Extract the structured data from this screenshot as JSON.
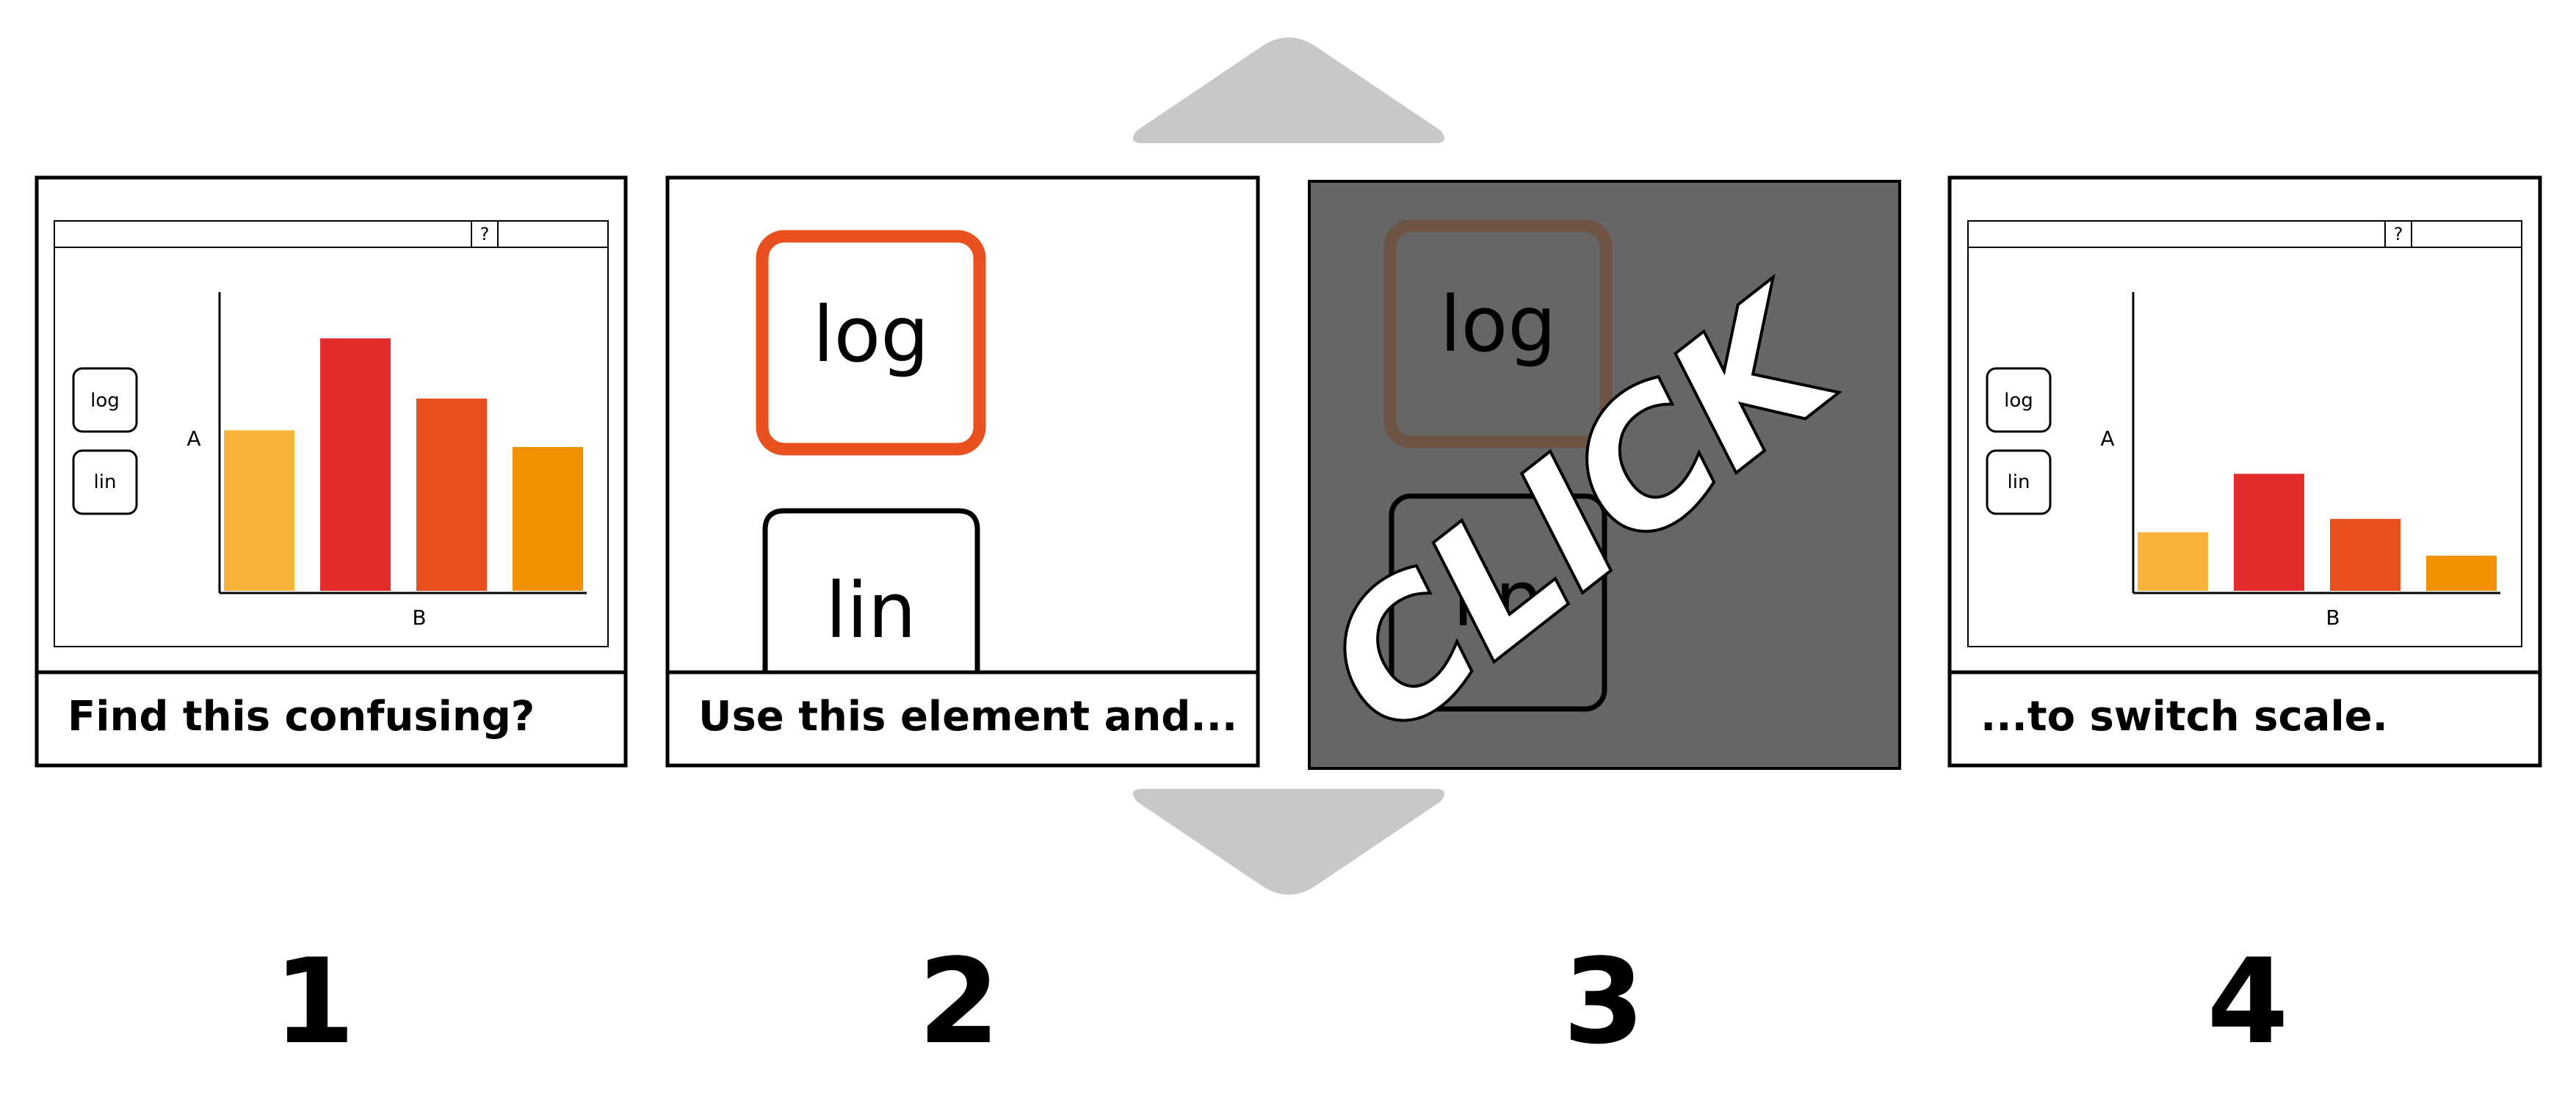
{
  "panels": [
    {
      "number": "1",
      "caption": "Find this confusing?"
    },
    {
      "number": "2",
      "caption": "Use this element and..."
    },
    {
      "number": "3",
      "caption": ""
    },
    {
      "number": "4",
      "caption": "...to switch scale."
    }
  ],
  "mini_ui": {
    "help_label": "?",
    "log_label": "log",
    "lin_label": "lin",
    "axis_y": "A",
    "axis_x": "B"
  },
  "zoom_buttons": {
    "log_label": "log",
    "lin_label": "lin"
  },
  "click_word": "CLICK",
  "colors": {
    "bar1": "#f8b23a",
    "bar2": "#e32d2d",
    "bar3": "#e9501f",
    "bar4": "#f29100",
    "highlight": "#e9501f",
    "dark_panel": "#666666",
    "arrow": "#c8c8c8"
  },
  "chart_data": [
    {
      "type": "bar",
      "scale": "linear",
      "categories": [
        "",
        "",
        "",
        ""
      ],
      "values": [
        96,
        151,
        115,
        86
      ],
      "xlabel": "B",
      "ylabel": "A",
      "ylim": [
        0,
        180
      ]
    },
    {
      "type": "bar",
      "scale": "log",
      "categories": [
        "",
        "",
        "",
        ""
      ],
      "values": [
        35,
        70,
        43,
        21
      ],
      "xlabel": "B",
      "ylabel": "A",
      "ylim": [
        0,
        180
      ]
    }
  ]
}
